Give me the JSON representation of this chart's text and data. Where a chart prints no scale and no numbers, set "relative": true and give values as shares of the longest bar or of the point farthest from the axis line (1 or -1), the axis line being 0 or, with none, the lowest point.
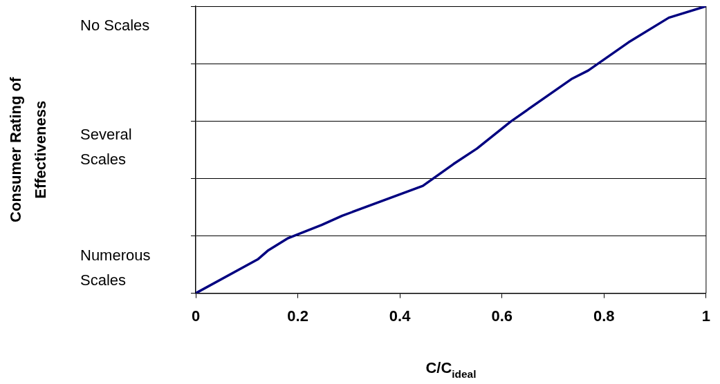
{
  "chart_data": {
    "type": "line",
    "xlabel": "C/C$_{ideal}$",
    "annotations": [
      "Consumer Rating of\nEffectiveness",
      "Numerous\nScales",
      "Several\nScales",
      "No Scales"
    ],
    "relative": true,
    "x": [
      0,
      0.1215,
      0.141,
      0.181,
      0.247,
      0.287,
      0.445,
      0.505,
      0.551,
      0.617,
      0.736,
      0.769,
      0.848,
      0.927,
      1
    ],
    "series": [
      {
        "color": "#000080",
        "values": [
          0,
          0.118,
          0.148,
          0.192,
          0.238,
          0.27,
          0.374,
          0.45,
          0.504,
          0.598,
          0.746,
          0.776,
          0.874,
          0.96,
          1
        ]
      }
    ],
    "xlim": [
      0,
      1
    ],
    "xticks": [
      0,
      0.2,
      0.4,
      0.6,
      0.8,
      1
    ],
    "grid": "y",
    "legend": false,
    "marker": "none",
    "line_style": "solid"
  }
}
